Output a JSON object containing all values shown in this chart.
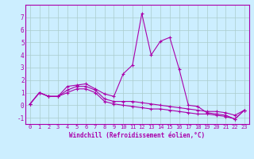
{
  "xlabel": "Windchill (Refroidissement éolien,°C)",
  "x_values": [
    0,
    1,
    2,
    3,
    4,
    5,
    6,
    7,
    8,
    9,
    10,
    11,
    12,
    13,
    14,
    15,
    16,
    17,
    18,
    19,
    20,
    21,
    22,
    23
  ],
  "line1_y": [
    0.1,
    1.0,
    0.7,
    0.7,
    1.5,
    1.6,
    1.7,
    1.3,
    0.9,
    0.7,
    2.5,
    3.2,
    7.3,
    4.0,
    5.1,
    5.4,
    2.9,
    0.0,
    -0.1,
    -0.6,
    -0.7,
    -0.8,
    -1.1,
    -0.4
  ],
  "line2_y": [
    0.1,
    1.0,
    0.7,
    0.7,
    1.2,
    1.5,
    1.5,
    1.2,
    0.5,
    0.3,
    0.3,
    0.3,
    0.2,
    0.1,
    0.0,
    -0.1,
    -0.2,
    -0.3,
    -0.4,
    -0.5,
    -0.5,
    -0.6,
    -0.8,
    -0.4
  ],
  "line3_y": [
    0.1,
    1.0,
    0.7,
    0.7,
    1.0,
    1.3,
    1.3,
    1.0,
    0.3,
    0.1,
    0.0,
    -0.1,
    -0.2,
    -0.3,
    -0.3,
    -0.4,
    -0.5,
    -0.6,
    -0.7,
    -0.7,
    -0.8,
    -0.9,
    -1.1,
    -0.4
  ],
  "line_color": "#aa00aa",
  "bg_color": "#cceeff",
  "grid_color": "#aacccc",
  "ylim": [
    -1.5,
    8.0
  ],
  "xlim": [
    -0.5,
    23.5
  ],
  "yticks": [
    -1,
    0,
    1,
    2,
    3,
    4,
    5,
    6,
    7
  ],
  "xticks": [
    0,
    1,
    2,
    3,
    4,
    5,
    6,
    7,
    8,
    9,
    10,
    11,
    12,
    13,
    14,
    15,
    16,
    17,
    18,
    19,
    20,
    21,
    22,
    23
  ],
  "figsize": [
    3.2,
    2.0
  ],
  "dpi": 100
}
